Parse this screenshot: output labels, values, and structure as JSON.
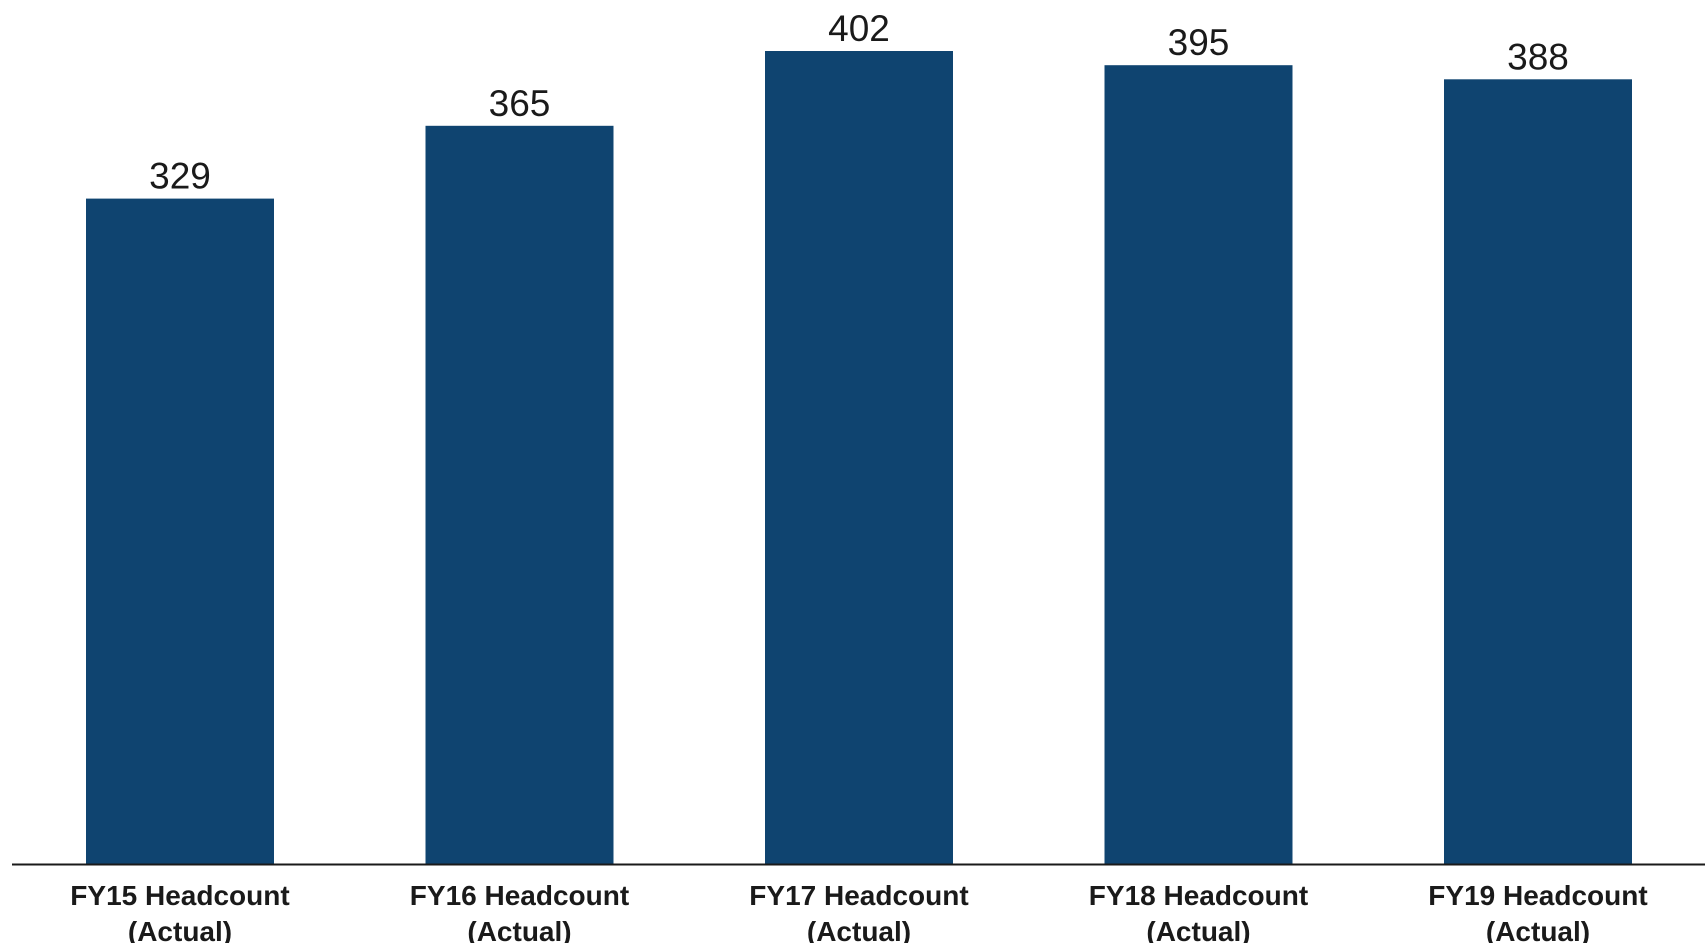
{
  "chart_data": {
    "type": "bar",
    "categories": [
      [
        "FY15 Headcount",
        "(Actual)"
      ],
      [
        "FY16 Headcount",
        "(Actual)"
      ],
      [
        "FY17 Headcount",
        "(Actual)"
      ],
      [
        "FY18 Headcount",
        "(Actual)"
      ],
      [
        "FY19 Headcount",
        "(Actual)"
      ]
    ],
    "values": [
      329,
      365,
      402,
      395,
      388
    ],
    "data_labels": [
      "329",
      "365",
      "402",
      "395",
      "388"
    ],
    "title": "",
    "xlabel": "",
    "ylabel": "",
    "ylim": [
      0,
      402
    ],
    "grid": false,
    "legend": "none",
    "bar_color": "#0f4470",
    "axis_color": "#1a1a1a"
  }
}
